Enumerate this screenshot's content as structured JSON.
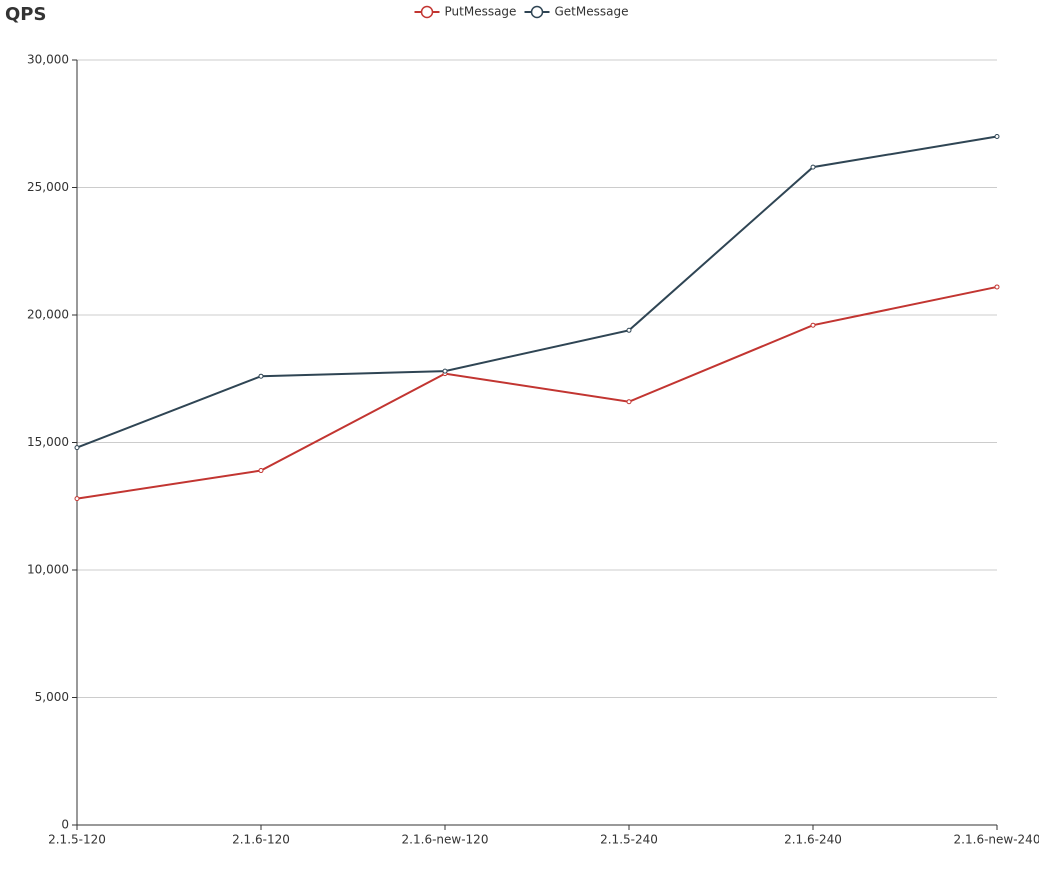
{
  "chart_data": {
    "type": "line",
    "title": "QPS",
    "categories": [
      "2.1.5-120",
      "2.1.6-120",
      "2.1.6-new-120",
      "2.1.5-240",
      "2.1.6-240",
      "2.1.6-new-240"
    ],
    "series": [
      {
        "name": "PutMessage",
        "color": "#c23531",
        "values": [
          12800,
          13900,
          17700,
          16600,
          19600,
          21100
        ]
      },
      {
        "name": "GetMessage",
        "color": "#2f4554",
        "values": [
          14800,
          17600,
          17800,
          19400,
          25800,
          27000
        ]
      }
    ],
    "ylim": [
      0,
      30000
    ],
    "yticks": [
      0,
      {
        "value": 5000,
        "label": "5,000"
      },
      {
        "value": 10000,
        "label": "10,000"
      },
      {
        "value": 15000,
        "label": "15,000"
      },
      {
        "value": 20000,
        "label": "20,000"
      },
      {
        "value": 25000,
        "label": "25,000"
      },
      {
        "value": 30000,
        "label": "30,000"
      }
    ],
    "grid": true,
    "legend": "top"
  }
}
